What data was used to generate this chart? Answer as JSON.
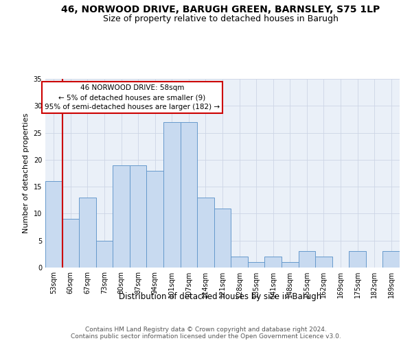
{
  "title1": "46, NORWOOD DRIVE, BARUGH GREEN, BARNSLEY, S75 1LP",
  "title2": "Size of property relative to detached houses in Barugh",
  "xlabel": "Distribution of detached houses by size in Barugh",
  "ylabel": "Number of detached properties",
  "categories": [
    "53sqm",
    "60sqm",
    "67sqm",
    "73sqm",
    "80sqm",
    "87sqm",
    "94sqm",
    "101sqm",
    "107sqm",
    "114sqm",
    "121sqm",
    "128sqm",
    "135sqm",
    "141sqm",
    "148sqm",
    "155sqm",
    "162sqm",
    "169sqm",
    "175sqm",
    "182sqm",
    "189sqm"
  ],
  "values": [
    16,
    9,
    13,
    5,
    19,
    19,
    18,
    27,
    27,
    13,
    11,
    2,
    1,
    2,
    1,
    3,
    2,
    0,
    3,
    0,
    3
  ],
  "bar_color": "#c8daf0",
  "bar_edge_color": "#6699cc",
  "highlight_line_color": "#cc0000",
  "annotation_line1": "46 NORWOOD DRIVE: 58sqm",
  "annotation_line2": "← 5% of detached houses are smaller (9)",
  "annotation_line3": "95% of semi-detached houses are larger (182) →",
  "annotation_box_facecolor": "#ffffff",
  "annotation_box_edgecolor": "#cc0000",
  "ylim": [
    0,
    35
  ],
  "yticks": [
    0,
    5,
    10,
    15,
    20,
    25,
    30,
    35
  ],
  "grid_color": "#cdd5e5",
  "background_color": "#eaf0f8",
  "footer_text": "Contains HM Land Registry data © Crown copyright and database right 2024.\nContains public sector information licensed under the Open Government Licence v3.0.",
  "title1_fontsize": 10,
  "title2_fontsize": 9,
  "xlabel_fontsize": 8.5,
  "ylabel_fontsize": 8,
  "tick_fontsize": 7,
  "annotation_fontsize": 7.5,
  "footer_fontsize": 6.5
}
